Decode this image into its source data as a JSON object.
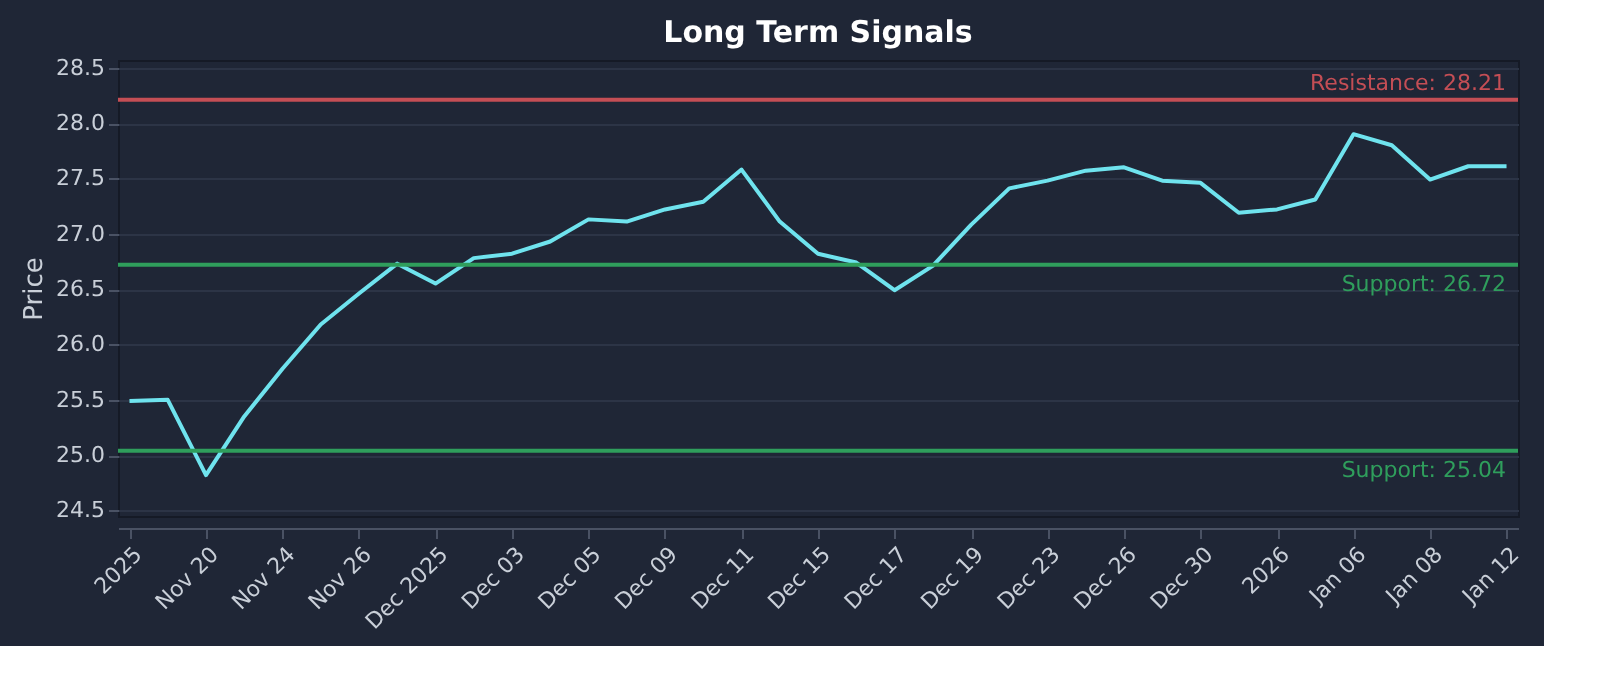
{
  "chart_data": {
    "type": "line",
    "title": "Long Term Signals",
    "ylabel": "Price",
    "categories": [
      "2025",
      null,
      "Nov 20",
      null,
      "Nov 24",
      null,
      "Nov 26",
      null,
      "Dec 2025",
      null,
      "Dec 03",
      null,
      "Dec 05",
      null,
      "Dec 09",
      null,
      "Dec 11",
      null,
      "Dec 15",
      null,
      "Dec 17",
      null,
      "Dec 19",
      null,
      "Dec 23",
      null,
      "Dec 26",
      null,
      "Dec 30",
      null,
      "2026",
      null,
      "Jan 06",
      null,
      "Jan 08",
      null,
      "Jan 12"
    ],
    "series": [
      {
        "color": "#6fe3ee",
        "values": [
          25.49,
          25.5,
          24.82,
          25.35,
          25.78,
          26.18,
          26.46,
          26.73,
          26.55,
          26.78,
          26.82,
          26.93,
          27.13,
          27.11,
          27.22,
          27.29,
          27.58,
          27.11,
          26.82,
          26.74,
          26.49,
          26.71,
          27.08,
          27.41,
          27.48,
          27.57,
          27.6,
          27.48,
          27.46,
          27.19,
          27.22,
          27.31,
          27.9,
          27.8,
          27.49,
          27.61,
          27.61
        ]
      }
    ],
    "ylim": [
      24.45,
      28.57
    ],
    "yticks": [
      24.5,
      {
        "value": 25,
        "label": "25.0"
      },
      25.5,
      {
        "value": 26,
        "label": "26.0"
      },
      26.5,
      {
        "value": 27,
        "label": "27.0"
      },
      27.5,
      {
        "value": 28,
        "label": "28.0"
      },
      28.5
    ],
    "grid": "y",
    "line_style": "solid",
    "ref_lines": [
      {
        "axis": "y",
        "value": 28.21,
        "label": "Resistance: 28.21",
        "color": "#c44e55"
      },
      {
        "axis": "y",
        "value": 26.72,
        "label": "Support: 26.72",
        "color": "#2f9e5c"
      },
      {
        "axis": "y",
        "value": 25.04,
        "label": "Support: 25.04",
        "color": "#2f9e5c"
      }
    ]
  }
}
